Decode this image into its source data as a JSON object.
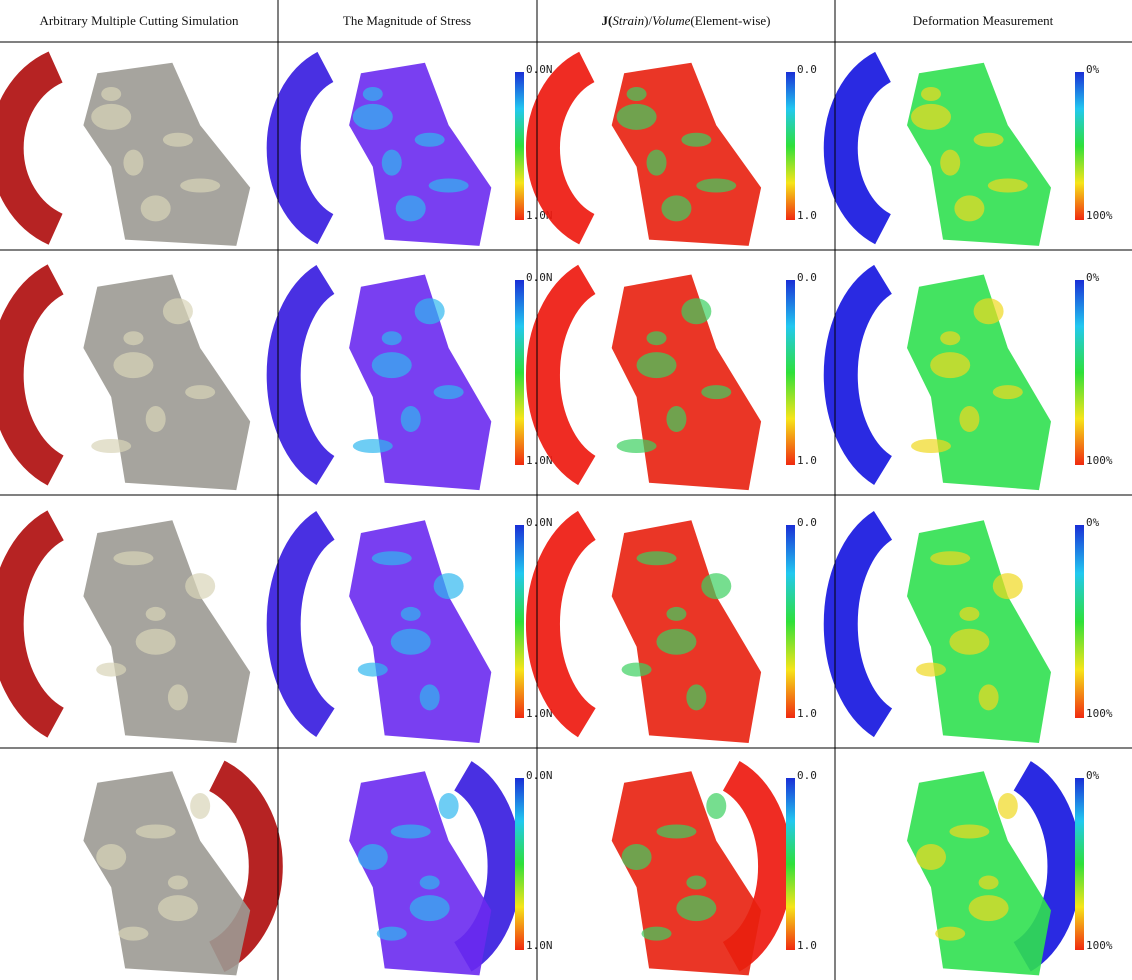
{
  "headers": [
    "Arbitrary Multiple Cutting Simulation",
    "The Magnitude of Stress",
    [
      "J(",
      "Strain",
      ")/",
      "Volume",
      "(Element-wise)"
    ],
    "Deformation Measurement"
  ],
  "rows": [
    {
      "stress": {
        "top": "0.0N",
        "bottom": "1.0N"
      },
      "strain": {
        "top": "0.0",
        "bottom": "1.0"
      },
      "deformation": {
        "top": "0%",
        "bottom": "100%"
      }
    },
    {
      "stress": {
        "top": "0.0N",
        "bottom": "1.0N"
      },
      "strain": {
        "top": "0.0",
        "bottom": "1.0"
      },
      "deformation": {
        "top": "0%",
        "bottom": "100%"
      }
    },
    {
      "stress": {
        "top": "0.0N",
        "bottom": "1.0N"
      },
      "strain": {
        "top": "0.0",
        "bottom": "1.0"
      },
      "deformation": {
        "top": "0%",
        "bottom": "100%"
      }
    },
    {
      "stress": {
        "top": "0.0N",
        "bottom": "1.0N"
      },
      "strain": {
        "top": "0.0",
        "bottom": "1.0"
      },
      "deformation": {
        "top": "0%",
        "bottom": "100%"
      }
    }
  ]
}
